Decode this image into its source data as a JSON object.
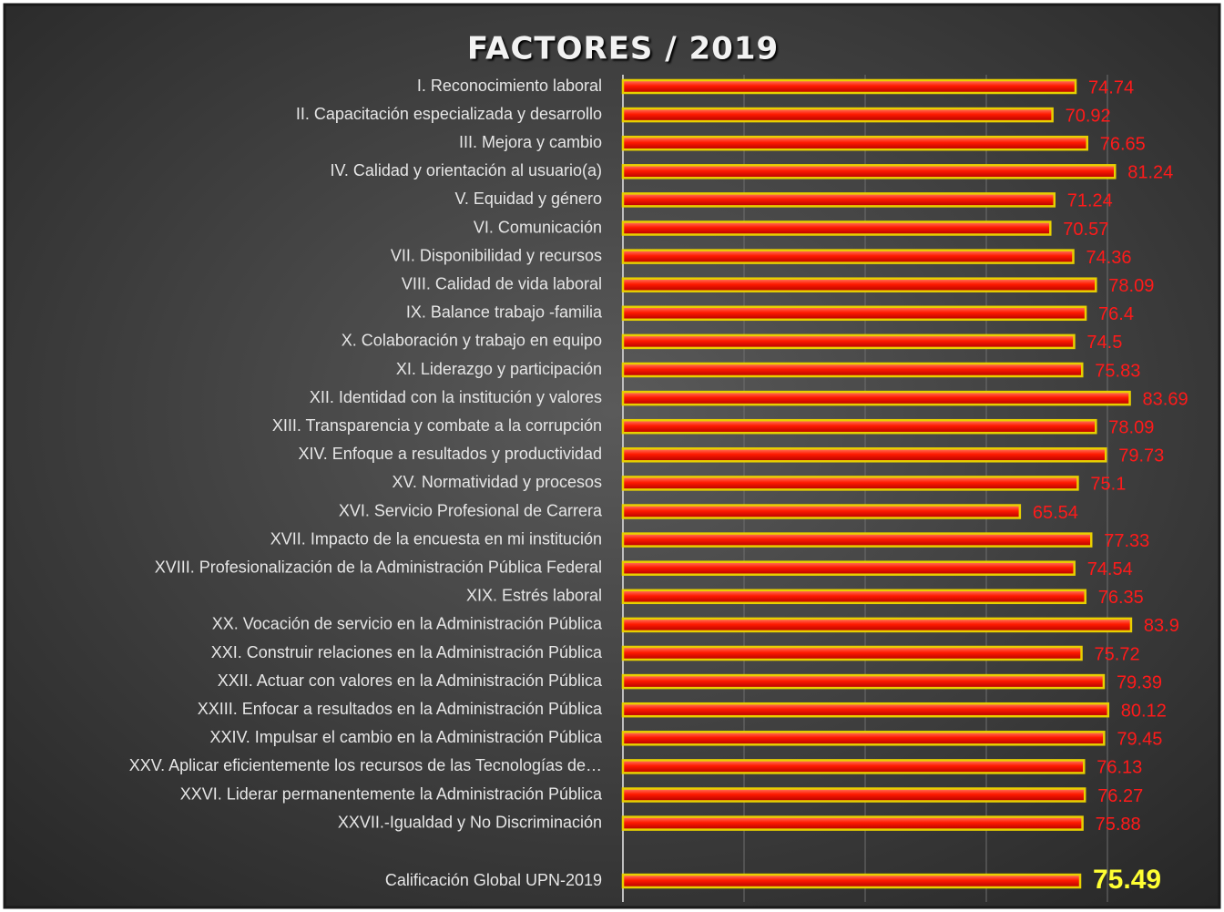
{
  "chart_data": {
    "type": "bar",
    "orientation": "horizontal",
    "title": "FACTORES / 2019",
    "categories": [
      "I. Reconocimiento laboral",
      "II. Capacitación especializada y desarrollo",
      "III. Mejora y cambio",
      "IV. Calidad y orientación al usuario(a)",
      "V. Equidad y género",
      "VI. Comunicación",
      "VII. Disponibilidad y recursos",
      "VIII. Calidad de vida laboral",
      "IX. Balance trabajo -familia",
      "X. Colaboración y trabajo en equipo",
      "XI. Liderazgo y participación",
      "XII. Identidad con la institución y valores",
      "XIII. Transparencia y combate a la corrupción",
      "XIV. Enfoque a resultados y productividad",
      "XV. Normatividad y procesos",
      "XVI. Servicio Profesional de Carrera",
      "XVII. Impacto de la encuesta en mi institución",
      "XVIII. Profesionalización de la Administración Pública Federal",
      "XIX. Estrés laboral",
      "XX. Vocación de servicio en la Administración Pública",
      "XXI. Construir relaciones en la Administración Pública",
      "XXII. Actuar con valores en la Administración Pública",
      "XXIII. Enfocar a resultados en la Administración Pública",
      "XXIV. Impulsar el cambio en la Administración Pública",
      "XXV. Aplicar eficientemente los recursos de las Tecnologías de…",
      "XXVI. Liderar permanentemente la Administración Pública",
      "XXVII.-Igualdad y No Discriminación"
    ],
    "values": [
      74.74,
      70.92,
      76.65,
      81.24,
      71.24,
      70.57,
      74.36,
      78.09,
      76.4,
      74.5,
      75.83,
      83.69,
      78.09,
      79.73,
      75.1,
      65.54,
      77.33,
      74.54,
      76.35,
      83.9,
      75.72,
      79.39,
      80.12,
      79.45,
      76.13,
      76.27,
      75.88
    ],
    "total": {
      "label": "Calificación Global UPN-2019",
      "value": 75.49
    },
    "color": "#ff1a00",
    "border_color": "#e8d000",
    "label_color": "#ff1a1a",
    "total_label_color": "#ffff33",
    "xlim": [
      0,
      100
    ],
    "xticks": [
      20,
      40,
      60,
      80
    ],
    "grid": true
  }
}
